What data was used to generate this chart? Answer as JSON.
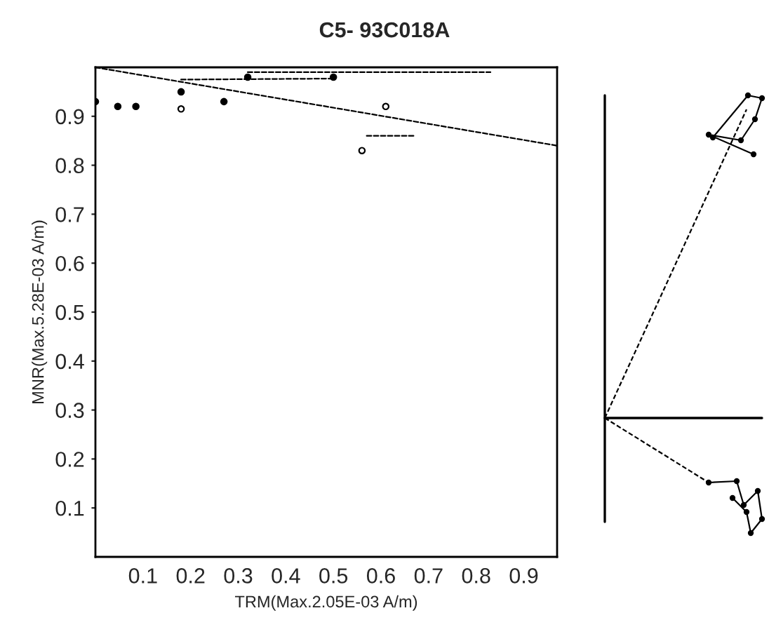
{
  "chart_data": {
    "type": "scatter",
    "title": "C5- 93C018A",
    "xlabel": "TRM(Max.2.05E-03 A/m)",
    "ylabel": "MNR(Max.5.28E-03 A/m)",
    "xlim": [
      0,
      0.97
    ],
    "ylim": [
      0,
      1.0
    ],
    "xticks": [
      0.1,
      0.2,
      0.3,
      0.4,
      0.5,
      0.6,
      0.7,
      0.8,
      0.9
    ],
    "yticks": [
      0.1,
      0.2,
      0.3,
      0.4,
      0.5,
      0.6,
      0.7,
      0.8,
      0.9
    ],
    "grid": false,
    "legend": false,
    "series": [
      {
        "type": "line",
        "line_style": "dashed",
        "marker": "none",
        "color": "#000000",
        "x": [
          0,
          0.97
        ],
        "values": [
          1.0,
          0.84
        ]
      },
      {
        "type": "line",
        "line_style": "dashed",
        "marker": "none",
        "color": "#000000",
        "x": [
          0.18,
          0.5
        ],
        "values": [
          0.975,
          0.977
        ]
      },
      {
        "type": "line",
        "line_style": "dashed",
        "marker": "none",
        "color": "#000000",
        "x": [
          0.32,
          0.83
        ],
        "values": [
          0.99,
          0.99
        ]
      },
      {
        "type": "line",
        "line_style": "dashed",
        "marker": "none",
        "color": "#000000",
        "x": [
          0.57,
          0.67
        ],
        "values": [
          0.86,
          0.86
        ]
      },
      {
        "marker": "circle",
        "color": "#000000",
        "x": [
          0,
          0.047,
          0.085,
          0.18,
          0.27,
          0.32,
          0.5
        ],
        "values": [
          0.93,
          0.92,
          0.92,
          0.95,
          0.93,
          0.98,
          0.98
        ]
      },
      {
        "marker": "circle",
        "color": "#ffffff",
        "x": [
          0.18,
          0.61,
          0.56
        ],
        "values": [
          0.915,
          0.92,
          0.83
        ]
      }
    ]
  }
}
